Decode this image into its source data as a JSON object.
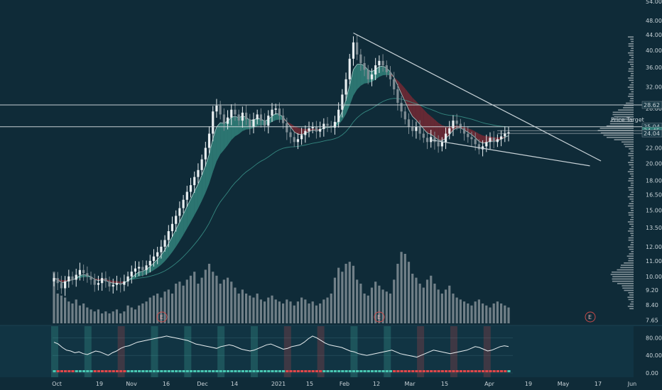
{
  "colors": {
    "background": "#0f2b38",
    "panel_bg": "#113443",
    "up": "#e8eef0",
    "down": "#7e8c93",
    "ribbon_bull": "#4fd1b7",
    "ribbon_bear": "#8a2a33",
    "volume": "#8a969c",
    "volume_profile": "#9aa7ad",
    "level_line": "#d9e0e3",
    "osc_line": "#e8eef0",
    "osc_bull": "#49c7b2",
    "osc_bear": "#e0474a",
    "earnings": "#c94a4a",
    "trendline": "#c9d3d8",
    "axis_text": "#c9d3d8"
  },
  "chart_data": [
    {
      "type": "candlestick",
      "title": "",
      "x_tick_labels": [
        "Oct",
        "19",
        "Nov",
        "16",
        "Dec",
        "14",
        "2021",
        "15",
        "Feb",
        "12",
        "Mar",
        "15",
        "Apr",
        "19",
        "May",
        "17",
        "Jun"
      ],
      "y_scale": "log",
      "y_tick_labels": [
        "54.00",
        "48.00",
        "44.00",
        "40.00",
        "36.00",
        "32.00",
        "28.00",
        "24.00",
        "22.00",
        "20.00",
        "18.00",
        "16.50",
        "15.00",
        "13.50",
        "12.00",
        "11.00",
        "10.00",
        "9.20",
        "8.40",
        "7.65"
      ],
      "ylim": [
        7.5,
        54
      ],
      "price_levels": [
        {
          "label": "28.62",
          "value": 28.62
        },
        {
          "label": "25.04",
          "value": 25.04
        },
        {
          "label": "24.45",
          "value": 24.45
        },
        {
          "label": "24.04",
          "value": 24.04
        }
      ],
      "price_target_label": "Price Target",
      "close": [
        9.9,
        9.6,
        9.3,
        9.7,
        10.0,
        9.8,
        10.1,
        10.4,
        10.2,
        10.0,
        9.8,
        9.5,
        9.6,
        9.9,
        9.7,
        9.4,
        9.5,
        9.6,
        9.5,
        9.7,
        10.0,
        10.3,
        10.5,
        10.6,
        10.4,
        10.7,
        11.0,
        11.3,
        11.6,
        12.0,
        12.5,
        13.2,
        13.8,
        14.5,
        15.2,
        16.0,
        16.8,
        17.5,
        18.4,
        19.2,
        20.5,
        22.0,
        24.0,
        27.5,
        28.5,
        27.0,
        25.5,
        26.5,
        27.8,
        27.0,
        26.0,
        27.3,
        26.2,
        25.0,
        26.2,
        27.0,
        26.0,
        25.2,
        26.8,
        27.8,
        28.0,
        26.8,
        25.6,
        24.2,
        23.5,
        22.8,
        23.2,
        23.8,
        24.4,
        24.8,
        25.0,
        24.3,
        24.7,
        25.5,
        25.2,
        24.9,
        25.8,
        27.8,
        30.5,
        33.5,
        38.0,
        42.0,
        39.0,
        37.0,
        35.5,
        33.5,
        34.5,
        36.5,
        37.5,
        36.5,
        35.0,
        33.5,
        31.5,
        29.0,
        27.5,
        26.2,
        25.0,
        24.4,
        25.0,
        24.0,
        23.4,
        22.8,
        23.5,
        22.8,
        22.2,
        22.8,
        24.0,
        24.8,
        26.0,
        25.5,
        24.8,
        24.0,
        23.5,
        23.2,
        22.5,
        21.8,
        22.2,
        22.8,
        23.4,
        22.8,
        23.2,
        23.6,
        24.0,
        24.2
      ],
      "volume": [
        52,
        30,
        28,
        26,
        22,
        20,
        24,
        18,
        20,
        16,
        14,
        12,
        14,
        10,
        12,
        10,
        12,
        14,
        10,
        12,
        18,
        16,
        14,
        18,
        20,
        22,
        26,
        28,
        30,
        26,
        32,
        34,
        30,
        40,
        42,
        38,
        44,
        48,
        52,
        40,
        46,
        54,
        60,
        52,
        48,
        40,
        44,
        46,
        42,
        36,
        30,
        34,
        30,
        28,
        26,
        30,
        24,
        22,
        26,
        28,
        24,
        22,
        20,
        24,
        22,
        18,
        22,
        26,
        24,
        20,
        22,
        18,
        20,
        24,
        26,
        30,
        46,
        56,
        52,
        60,
        62,
        58,
        44,
        40,
        30,
        28,
        36,
        42,
        38,
        34,
        32,
        30,
        44,
        60,
        72,
        70,
        62,
        50,
        46,
        40,
        36,
        44,
        48,
        40,
        34,
        30,
        34,
        38,
        30,
        26,
        24,
        22,
        20,
        18,
        22,
        24,
        20,
        18,
        16,
        20,
        22,
        20,
        18,
        16
      ],
      "trendlines": [
        {
          "name": "upper",
          "from": {
            "x_index": 81,
            "value": 44.5
          },
          "to": {
            "x_index": 148,
            "value": 20.3
          }
        },
        {
          "name": "lower",
          "from": {
            "x_index": 102,
            "value": 23.1
          },
          "to": {
            "x_index": 145,
            "value": 19.7
          }
        }
      ],
      "earnings_markers": [
        "E",
        "E",
        "E"
      ]
    },
    {
      "type": "line",
      "title": "",
      "y_tick_labels": [
        "80.00",
        "40.00",
        "0.00"
      ],
      "ylim": [
        0,
        100
      ],
      "oscillator": [
        70,
        66,
        58,
        52,
        50,
        46,
        48,
        44,
        42,
        46,
        50,
        48,
        44,
        40,
        46,
        50,
        56,
        60,
        62,
        66,
        70,
        72,
        74,
        76,
        78,
        80,
        82,
        84,
        82,
        80,
        78,
        76,
        74,
        70,
        66,
        64,
        62,
        60,
        58,
        56,
        60,
        62,
        64,
        62,
        58,
        54,
        52,
        50,
        52,
        56,
        60,
        64,
        66,
        62,
        58,
        54,
        56,
        60,
        62,
        64,
        70,
        78,
        84,
        80,
        74,
        68,
        64,
        62,
        60,
        58,
        54,
        50,
        48,
        44,
        42,
        40,
        42,
        44,
        46,
        48,
        50,
        52,
        48,
        44,
        42,
        40,
        38,
        36,
        40,
        44,
        48,
        52,
        50,
        48,
        46,
        44,
        46,
        48,
        50,
        52,
        56,
        60,
        58,
        54,
        50,
        52,
        56,
        60,
        62,
        60
      ]
    }
  ]
}
